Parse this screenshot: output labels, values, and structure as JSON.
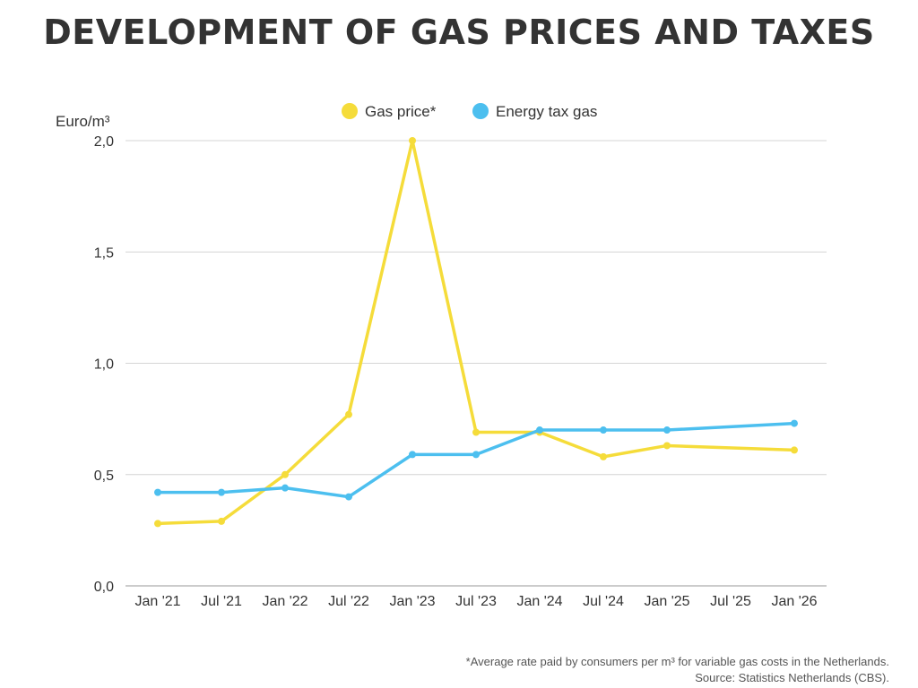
{
  "chart_data": {
    "type": "line",
    "title": "DEVELOPMENT OF GAS PRICES AND TAXES",
    "ylabel": "Euro/m³",
    "xlabel": "",
    "categories": [
      "Jan '21",
      "Jul '21",
      "Jan '22",
      "Jul '22",
      "Jan '23",
      "Jul '23",
      "Jan '24",
      "Jul '24",
      "Jan '25",
      "Jul '25",
      "Jan '26"
    ],
    "ylim": [
      0,
      2.0
    ],
    "yticks": [
      "0,0",
      "0,5",
      "1,0",
      "1,5",
      "2,0"
    ],
    "ytick_values": [
      0,
      0.5,
      1.0,
      1.5,
      2.0
    ],
    "grid": true,
    "legend_position": "top",
    "series": [
      {
        "name": "Gas price*",
        "color": "#f5dc3a",
        "values": [
          0.28,
          0.29,
          0.5,
          0.77,
          2.0,
          0.69,
          0.69,
          0.58,
          0.63,
          null,
          0.61
        ]
      },
      {
        "name": "Energy tax gas",
        "color": "#4cbfef",
        "values": [
          0.42,
          0.42,
          0.44,
          0.4,
          0.59,
          0.59,
          0.7,
          0.7,
          0.7,
          null,
          0.73
        ]
      }
    ],
    "footnote": "*Average rate paid by consumers per m³ for variable gas costs in the Netherlands.",
    "source": "Source: Statistics Netherlands (CBS)."
  }
}
